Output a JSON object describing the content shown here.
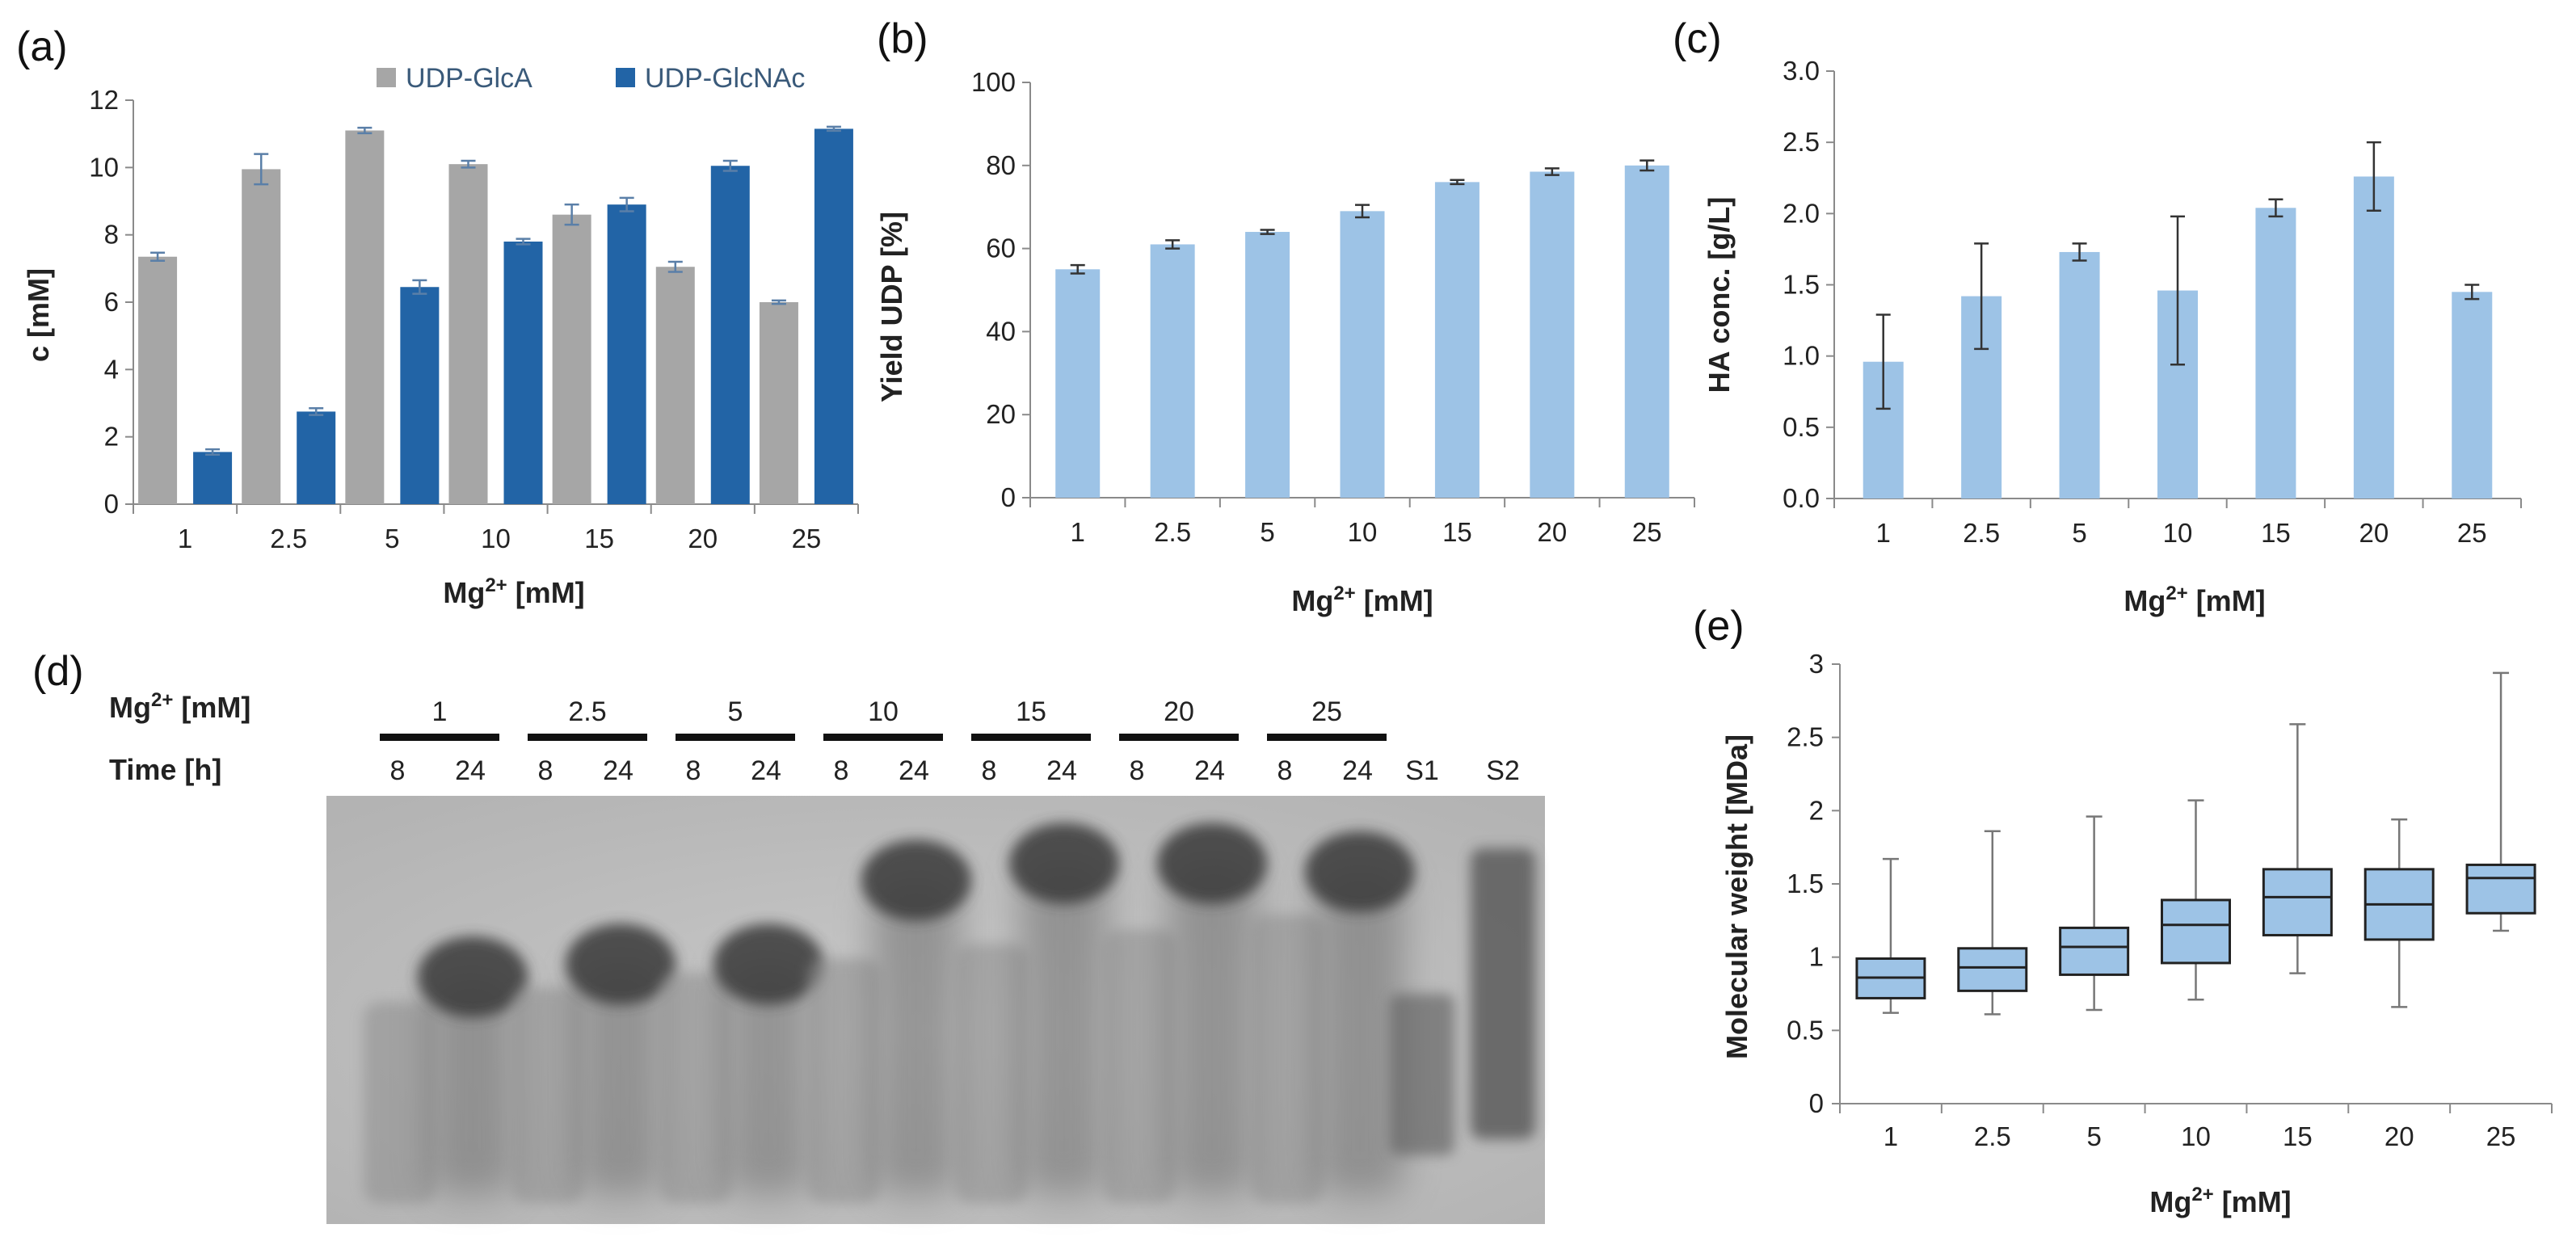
{
  "panels": {
    "a": {
      "letter": "(a)",
      "chart_data": {
        "type": "bar",
        "title": "",
        "xlabel": "Mg2+ [mM]",
        "ylabel": "c [mM]",
        "categories": [
          "1",
          "2.5",
          "5",
          "10",
          "15",
          "20",
          "25"
        ],
        "series": [
          {
            "name": "UDP-GlcA",
            "color": "#a6a6a6",
            "values": [
              7.35,
              9.95,
              11.1,
              10.1,
              8.6,
              7.05,
              6.0
            ],
            "errors": [
              0.12,
              0.45,
              0.08,
              0.1,
              0.3,
              0.15,
              0.05
            ]
          },
          {
            "name": "UDP-GlcNAc",
            "color": "#2264a6",
            "values": [
              1.55,
              2.75,
              6.45,
              7.8,
              8.9,
              10.05,
              11.15
            ],
            "errors": [
              0.08,
              0.1,
              0.2,
              0.08,
              0.2,
              0.15,
              0.06
            ]
          }
        ],
        "yticks": [
          "0",
          "2",
          "4",
          "6",
          "8",
          "10",
          "12"
        ],
        "ylim": [
          0,
          12
        ],
        "legend": "top"
      }
    },
    "b": {
      "letter": "(b)",
      "chart_data": {
        "type": "bar",
        "title": "",
        "xlabel": "Mg2+ [mM]",
        "ylabel": "Yield UDP [%]",
        "categories": [
          "1",
          "2.5",
          "5",
          "10",
          "15",
          "20",
          "25"
        ],
        "series": [
          {
            "name": "Yield UDP",
            "color": "#9dc3e6",
            "values": [
              55,
              61,
              64,
              69,
              76,
              78.5,
              80
            ],
            "errors": [
              1,
              1,
              0.5,
              1.5,
              0.5,
              0.8,
              1.2
            ]
          }
        ],
        "yticks": [
          "0",
          "20",
          "40",
          "60",
          "80",
          "100"
        ],
        "ylim": [
          0,
          100
        ]
      }
    },
    "c": {
      "letter": "(c)",
      "chart_data": {
        "type": "bar",
        "title": "",
        "xlabel": "Mg2+ [mM]",
        "ylabel": "HA conc. [g/L]",
        "categories": [
          "1",
          "2.5",
          "5",
          "10",
          "15",
          "20",
          "25"
        ],
        "series": [
          {
            "name": "HA conc.",
            "color": "#9dc3e6",
            "values": [
              0.96,
              1.42,
              1.73,
              1.46,
              2.04,
              2.26,
              1.45
            ],
            "errors": [
              0.33,
              0.37,
              0.06,
              0.52,
              0.06,
              0.24,
              0.05
            ]
          }
        ],
        "yticks": [
          "0.0",
          "0.5",
          "1.0",
          "1.5",
          "2.0",
          "2.5",
          "3.0"
        ],
        "ylim": [
          0,
          3
        ]
      }
    },
    "d": {
      "letter": "(d)",
      "row1_label": "Mg2+ [mM]",
      "row2_label": "Time [h]",
      "groups": [
        "1",
        "2.5",
        "5",
        "10",
        "15",
        "20",
        "25"
      ],
      "times": [
        "8",
        "24"
      ],
      "standards": [
        "S1",
        "S2"
      ]
    },
    "e": {
      "letter": "(e)",
      "chart_data": {
        "type": "box",
        "title": "",
        "xlabel": "Mg2+ [mM]",
        "ylabel": "Molecular weight [MDa]",
        "categories": [
          "1",
          "2.5",
          "5",
          "10",
          "15",
          "20",
          "25"
        ],
        "boxes": [
          {
            "min": 0.62,
            "q1": 0.72,
            "median": 0.86,
            "q3": 0.99,
            "max": 1.67
          },
          {
            "min": 0.61,
            "q1": 0.77,
            "median": 0.93,
            "q3": 1.06,
            "max": 1.86
          },
          {
            "min": 0.64,
            "q1": 0.88,
            "median": 1.07,
            "q3": 1.2,
            "max": 1.96
          },
          {
            "min": 0.71,
            "q1": 0.96,
            "median": 1.22,
            "q3": 1.39,
            "max": 2.07
          },
          {
            "min": 0.89,
            "q1": 1.15,
            "median": 1.41,
            "q3": 1.6,
            "max": 2.59
          },
          {
            "min": 0.66,
            "q1": 1.12,
            "median": 1.36,
            "q3": 1.6,
            "max": 1.94
          },
          {
            "min": 1.18,
            "q1": 1.3,
            "median": 1.54,
            "q3": 1.63,
            "max": 2.94
          }
        ],
        "box_color": "#9dc3e6",
        "yticks": [
          "0",
          "0.5",
          "1",
          "1.5",
          "2",
          "2.5",
          "3"
        ],
        "ylim": [
          0,
          3
        ]
      }
    }
  }
}
